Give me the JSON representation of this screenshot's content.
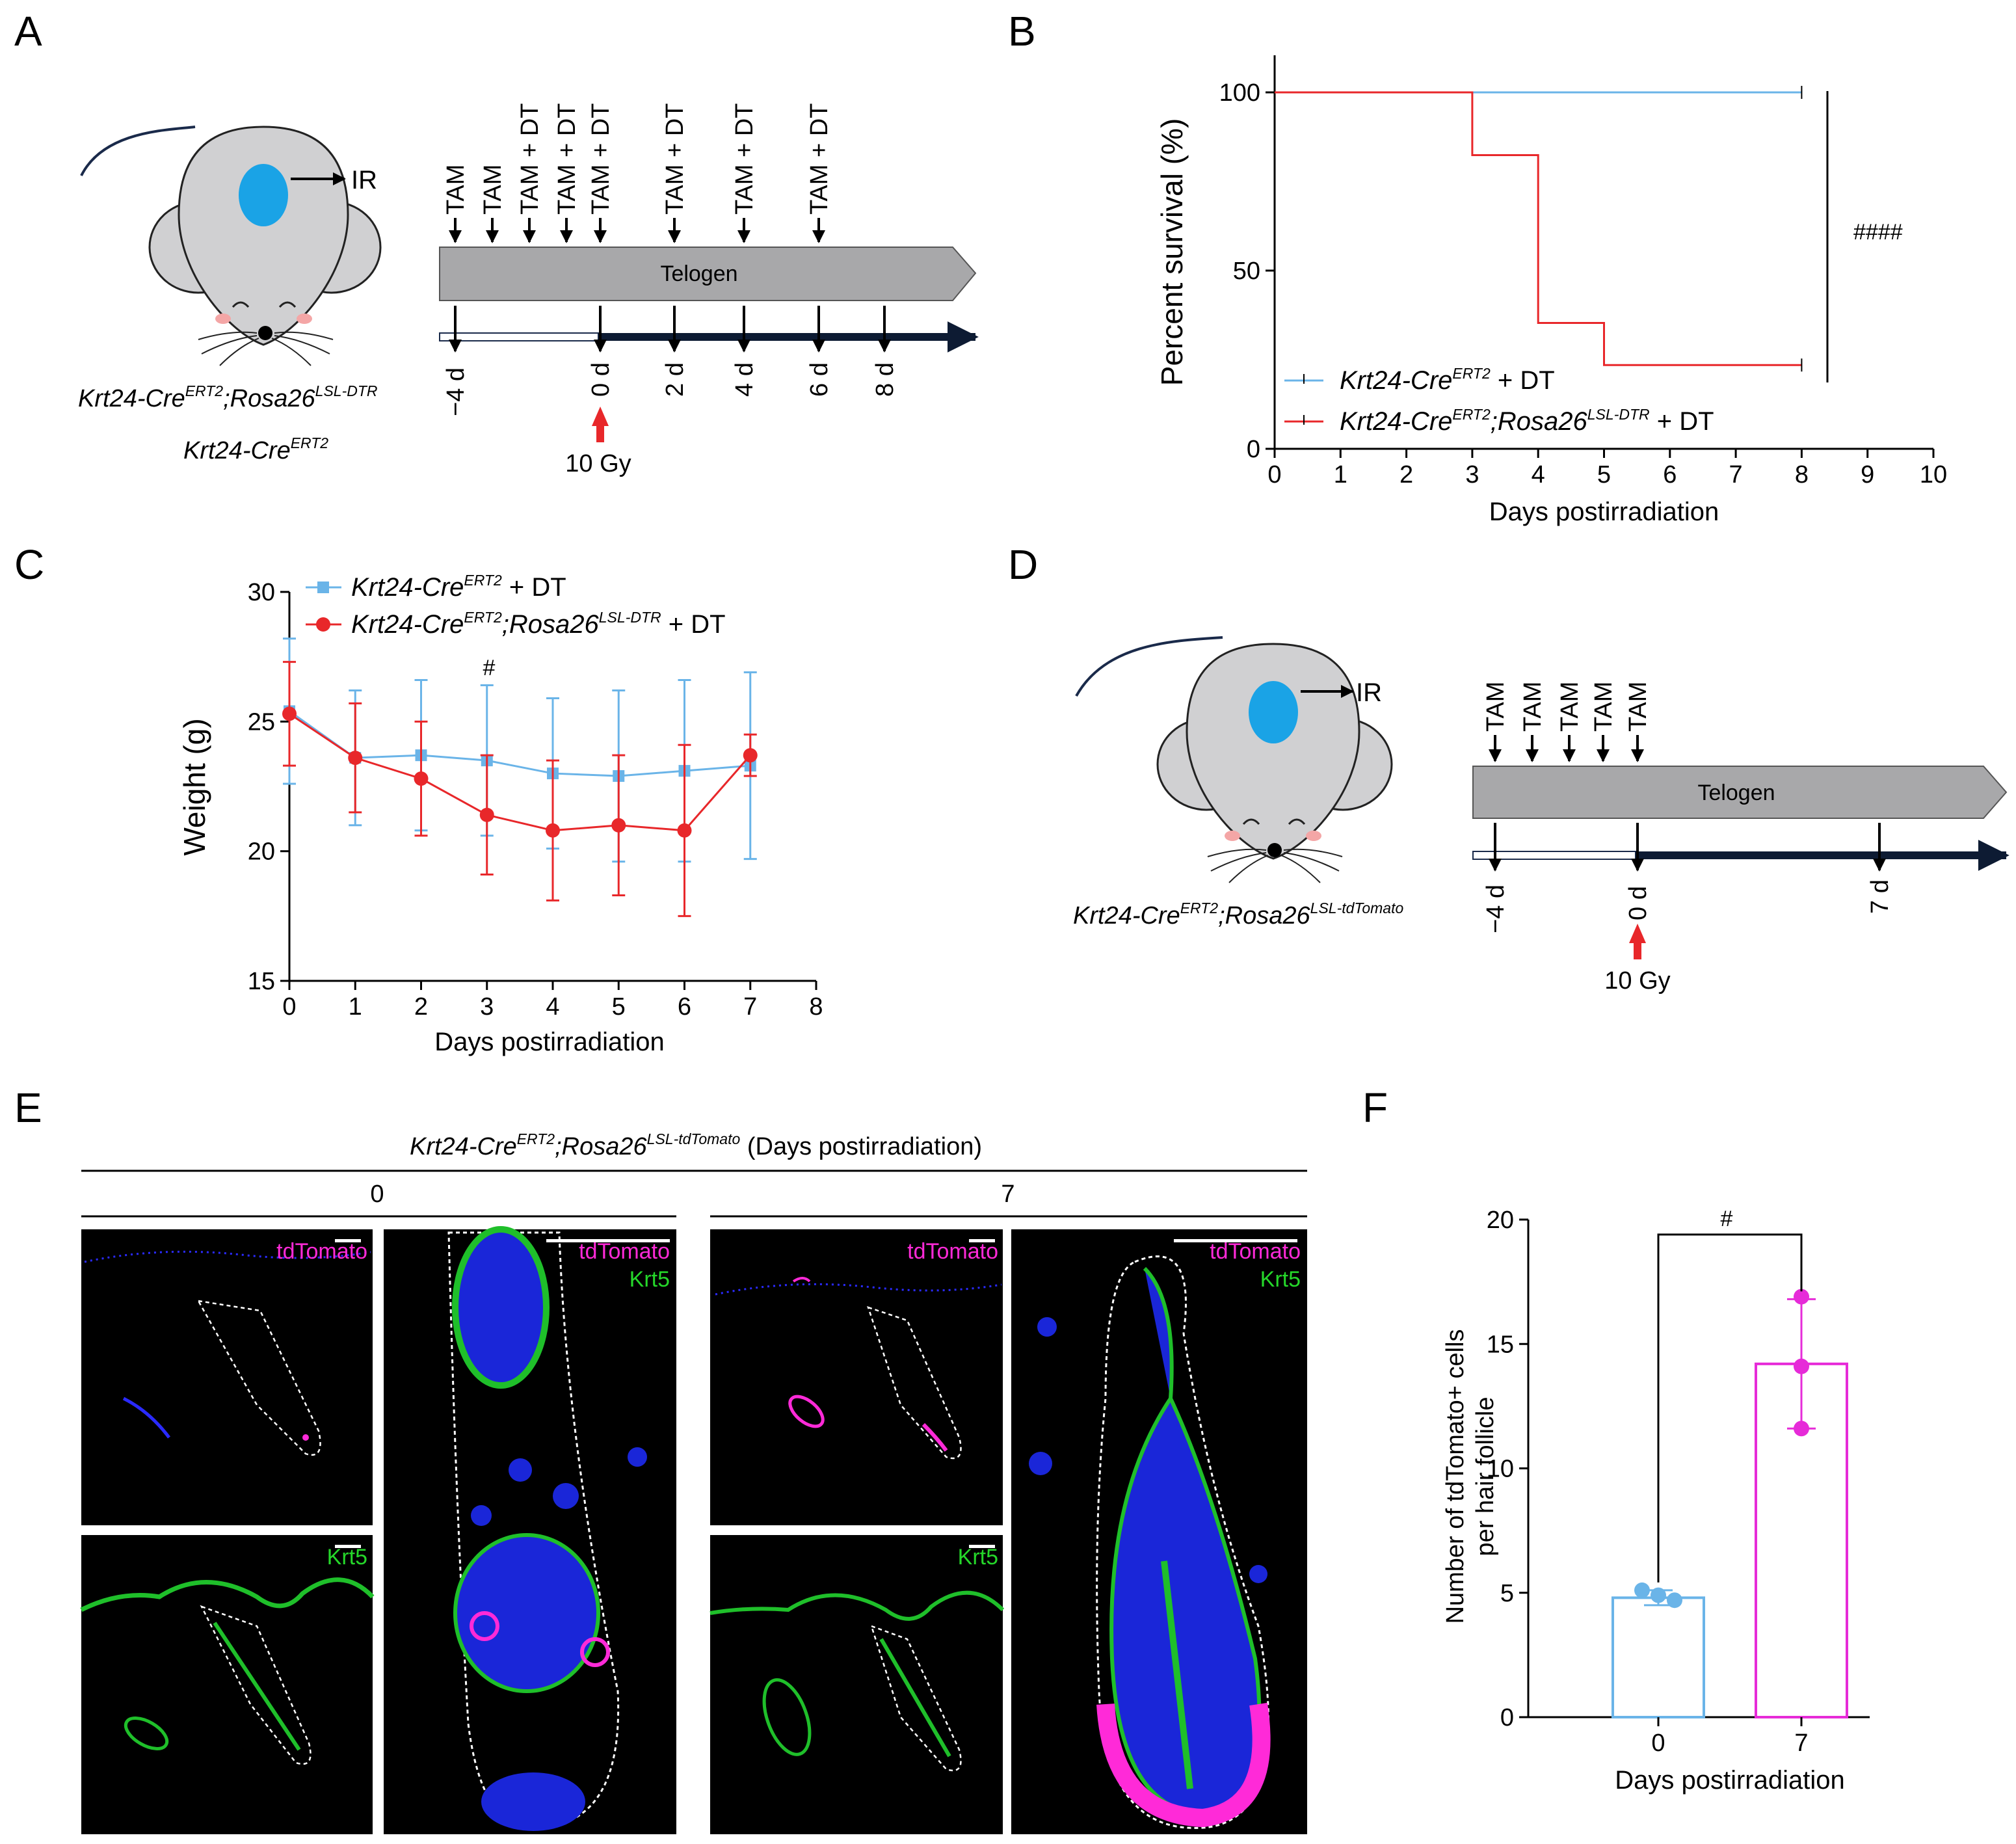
{
  "panels": {
    "A": {
      "letter": "A",
      "mouse_line_1": "Krt24-Cre",
      "mouse_line_1_sup": "ERT2",
      "mouse_line_1b": ";Rosa26",
      "mouse_line_1b_sup": "LSL-DTR",
      "mouse_line_2": "Krt24-Cre",
      "mouse_line_2_sup": "ERT2",
      "ir_label": "IR",
      "phase_label": "Telogen",
      "treatments": [
        "TAM",
        "TAM",
        "TAM + DT",
        "TAM + DT",
        "TAM + DT",
        "TAM + DT",
        "TAM + DT",
        "TAM + DT"
      ],
      "days": [
        "−4 d",
        "0 d",
        "2 d",
        "4 d",
        "6 d",
        "8 d"
      ],
      "dose_label": "10 Gy"
    },
    "B": {
      "letter": "B",
      "significance": "####",
      "legend": [
        {
          "name": "Krt24-Cre",
          "sup": "ERT2",
          "name2": "",
          "sup2": "",
          "suffix": " + DT",
          "color": "#6ab4e8"
        },
        {
          "name": "Krt24-Cre",
          "sup": "ERT2",
          "name2": ";Rosa26",
          "sup2": "LSL-DTR",
          "suffix": " + DT",
          "color": "#e8272a"
        }
      ]
    },
    "C": {
      "letter": "C",
      "significance": "#",
      "legend": [
        {
          "name": "Krt24-Cre",
          "sup": "ERT2",
          "name2": "",
          "sup2": "",
          "suffix": " + DT",
          "color": "#6ab4e8"
        },
        {
          "name": "Krt24-Cre",
          "sup": "ERT2",
          "name2": ";Rosa26",
          "sup2": "LSL-DTR",
          "suffix": " + DT",
          "color": "#e8272a"
        }
      ]
    },
    "D": {
      "letter": "D",
      "mouse_line": "Krt24-Cre",
      "mouse_line_sup": "ERT2",
      "mouse_line_b": ";Rosa26",
      "mouse_line_b_sup": "LSL-tdTomato",
      "ir_label": "IR",
      "phase_label": "Telogen",
      "treatments": [
        "TAM",
        "TAM",
        "TAM",
        "TAM",
        "TAM"
      ],
      "days": [
        "−4 d",
        "0 d",
        "7 d"
      ],
      "dose_label": "10 Gy"
    },
    "E": {
      "letter": "E",
      "title_name": "Krt24-Cre",
      "title_sup": "ERT2",
      "title_name2": ";Rosa26",
      "title_sup2": "LSL-tdTomato",
      "title_suffix": " (Days postirradiation)",
      "groups": [
        "0",
        "7"
      ],
      "stain_tdtomato": "tdTomato",
      "stain_krt5": "Krt5"
    },
    "F": {
      "letter": "F",
      "significance": "#"
    }
  },
  "chart_data": [
    {
      "id": "B",
      "type": "line",
      "subtype": "kaplan-meier",
      "title": "",
      "xlabel": "Days postirradiation",
      "ylabel": "Percent survival (%)",
      "xlim": [
        0,
        10
      ],
      "ylim": [
        0,
        100
      ],
      "xticks": [
        0,
        1,
        2,
        3,
        4,
        5,
        6,
        7,
        8,
        9,
        10
      ],
      "yticks": [
        0,
        50,
        100
      ],
      "series": [
        {
          "name": "Krt24-CreERT2 + DT",
          "color": "#6ab4e8",
          "x": [
            0,
            8
          ],
          "y": [
            100,
            100
          ]
        },
        {
          "name": "Krt24-CreERT2;Rosa26LSL-DTR + DT",
          "color": "#e8272a",
          "x": [
            0,
            3,
            4,
            5,
            8
          ],
          "y": [
            100,
            82.4,
            35.3,
            23.5,
            23.5
          ]
        }
      ],
      "annotation": "####"
    },
    {
      "id": "C",
      "type": "line",
      "title": "",
      "xlabel": "Days postirradiation",
      "ylabel": "Weight (g)",
      "xlim": [
        0,
        8
      ],
      "ylim": [
        15,
        30
      ],
      "xticks": [
        0,
        1,
        2,
        3,
        4,
        5,
        6,
        7,
        8
      ],
      "yticks": [
        15,
        20,
        25,
        30
      ],
      "categories": [
        0,
        1,
        2,
        3,
        4,
        5,
        6,
        7
      ],
      "series": [
        {
          "name": "Krt24-CreERT2 + DT",
          "color": "#6ab4e8",
          "marker": "square",
          "values": [
            25.4,
            23.6,
            23.7,
            23.5,
            23.0,
            22.9,
            23.1,
            23.3
          ],
          "error": [
            2.8,
            2.6,
            2.9,
            2.9,
            2.9,
            3.3,
            3.5,
            3.6
          ]
        },
        {
          "name": "Krt24-CreERT2;Rosa26LSL-DTR + DT",
          "color": "#e8272a",
          "marker": "circle",
          "values": [
            25.3,
            23.6,
            22.8,
            21.4,
            20.8,
            21.0,
            20.8,
            23.7
          ],
          "error": [
            2.0,
            2.1,
            2.2,
            2.3,
            2.7,
            2.7,
            3.3,
            0.8
          ]
        }
      ],
      "annotation": {
        "text": "#",
        "x": 3
      }
    },
    {
      "id": "F",
      "type": "bar",
      "title": "",
      "xlabel": "Days postirradiation",
      "ylabel": "Number of  tdTomato+ cells per hair follicle",
      "ylim": [
        0,
        20
      ],
      "yticks": [
        0,
        5,
        10,
        15,
        20
      ],
      "categories": [
        "0",
        "7"
      ],
      "values": [
        4.8,
        14.2
      ],
      "error": [
        0.3,
        2.6
      ],
      "points": [
        [
          5.1,
          4.9,
          4.7
        ],
        [
          16.9,
          14.1,
          11.6
        ]
      ],
      "colors": [
        "#6ab4e8",
        "#e62bd8"
      ],
      "annotation": "#"
    }
  ]
}
